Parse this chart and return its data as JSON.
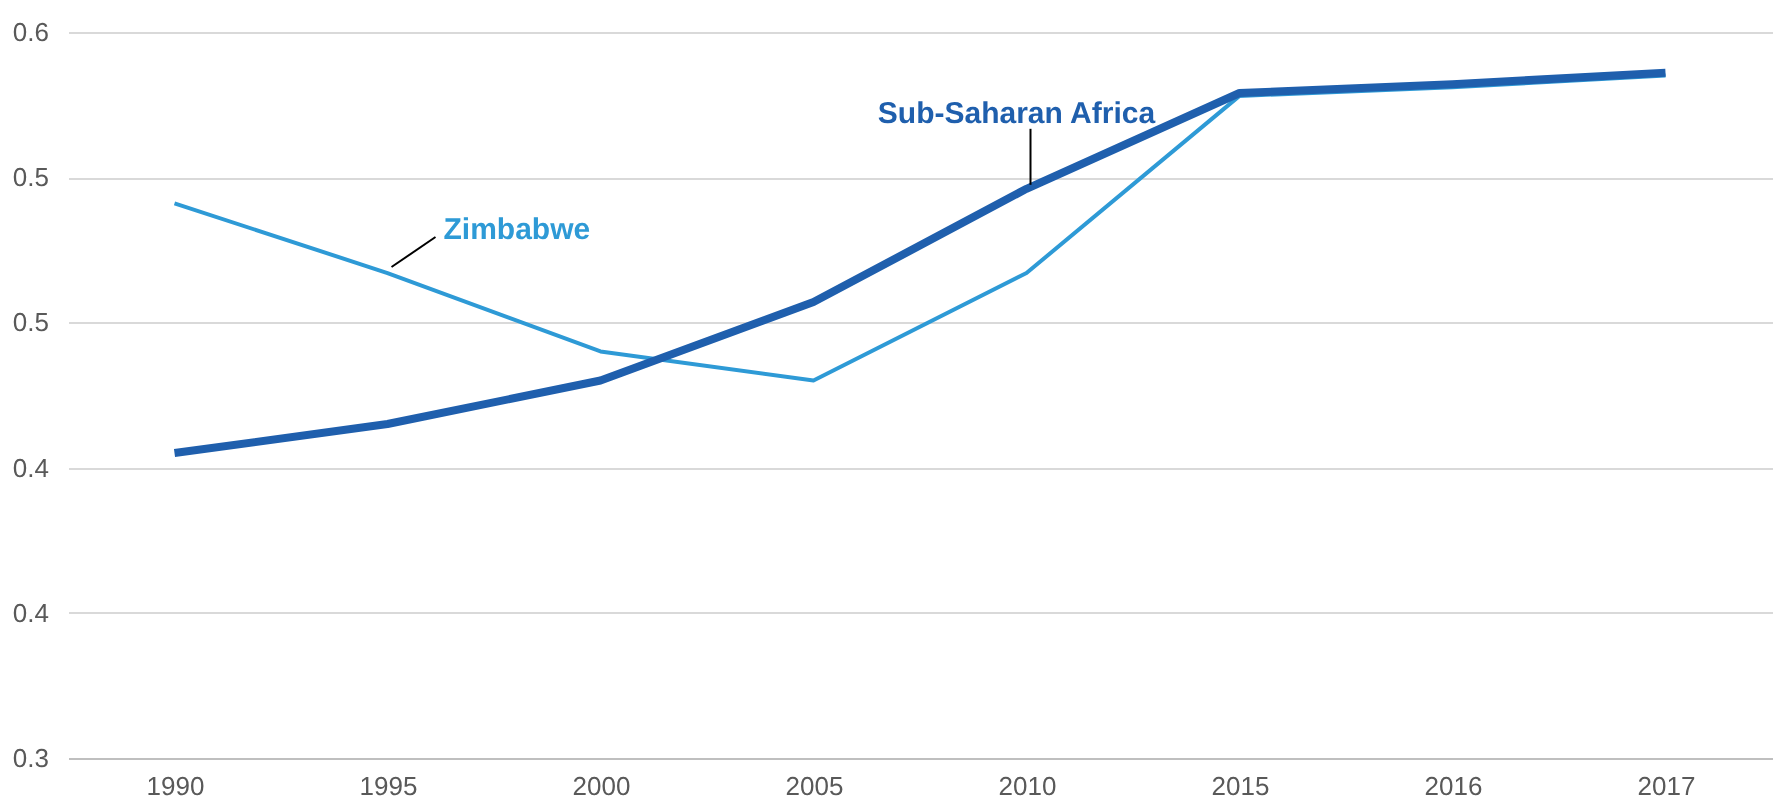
{
  "chart_data": {
    "type": "line",
    "categories": [
      "1990",
      "1995",
      "2000",
      "2005",
      "2010",
      "2015",
      "2016",
      "2017"
    ],
    "series": [
      {
        "name": "Zimbabwe",
        "color": "#2e9ad6",
        "values": [
          0.491,
          0.467,
          0.44,
          0.43,
          0.467,
          0.528,
          0.531,
          0.535
        ]
      },
      {
        "name": "Sub-Saharan Africa",
        "color": "#1f5fad",
        "values": [
          0.405,
          0.415,
          0.43,
          0.457,
          0.496,
          0.529,
          0.532,
          0.536
        ]
      }
    ],
    "ylim": [
      0.3,
      0.55
    ],
    "yticks": [
      {
        "value": 0.3,
        "label": "0.3"
      },
      {
        "value": 0.35,
        "label": "0.4"
      },
      {
        "value": 0.4,
        "label": "0.4"
      },
      {
        "value": 0.45,
        "label": "0.5"
      },
      {
        "value": 0.5,
        "label": "0.5"
      },
      {
        "value": 0.55,
        "label": "0.6"
      }
    ],
    "grid": "y",
    "marker": "none",
    "line_style": "solid"
  }
}
